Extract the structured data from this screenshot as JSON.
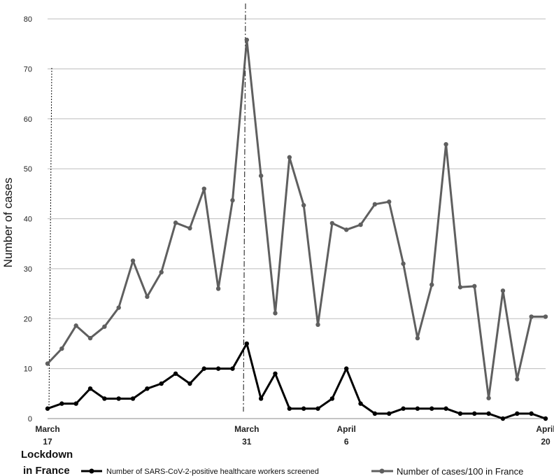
{
  "chart_data": {
    "type": "line",
    "title": "",
    "ylabel": "Number  of cases",
    "xlabel": "",
    "ylim": [
      0,
      80
    ],
    "yticks": [
      "0",
      "10",
      "20",
      "30",
      "40",
      "50",
      "60",
      "70",
      "80"
    ],
    "x_tick_labels": [
      {
        "index": 0,
        "top": "March",
        "bottom": "17"
      },
      {
        "index": 14,
        "top": "March",
        "bottom": "31"
      },
      {
        "index": 21,
        "top": "April",
        "bottom": "6"
      },
      {
        "index": 35,
        "top": "April",
        "bottom": "20"
      }
    ],
    "annotation": {
      "line1": "Lockdown",
      "line2": "in France"
    },
    "grid": "horizontal",
    "legend_position": "bottom",
    "series": [
      {
        "name": "Number of SARS-CoV-2-positive  healthcare workers screened",
        "color": "#000000",
        "values": [
          2,
          3,
          3,
          6,
          4,
          4,
          4,
          6,
          7,
          9,
          7,
          10,
          10,
          10,
          15,
          4,
          9,
          2,
          2,
          2,
          4,
          10,
          3,
          1,
          1,
          2,
          2,
          2,
          2,
          1,
          1,
          1,
          0,
          1,
          1,
          0
        ]
      },
      {
        "name": "Number of cases/100 in France",
        "color": "#5f5f5f",
        "values": [
          11,
          14,
          18.6,
          16.1,
          18.4,
          22.2,
          31.6,
          24.4,
          29.3,
          39.2,
          38.1,
          46,
          26,
          43.7,
          75.8,
          48.6,
          21.1,
          52.3,
          42.7,
          18.8,
          39.1,
          37.8,
          38.8,
          42.9,
          43.4,
          31,
          16.1,
          26.8,
          54.9,
          26.3,
          26.5,
          4.1,
          25.6,
          7.9,
          20.4,
          20.4
        ]
      }
    ]
  }
}
